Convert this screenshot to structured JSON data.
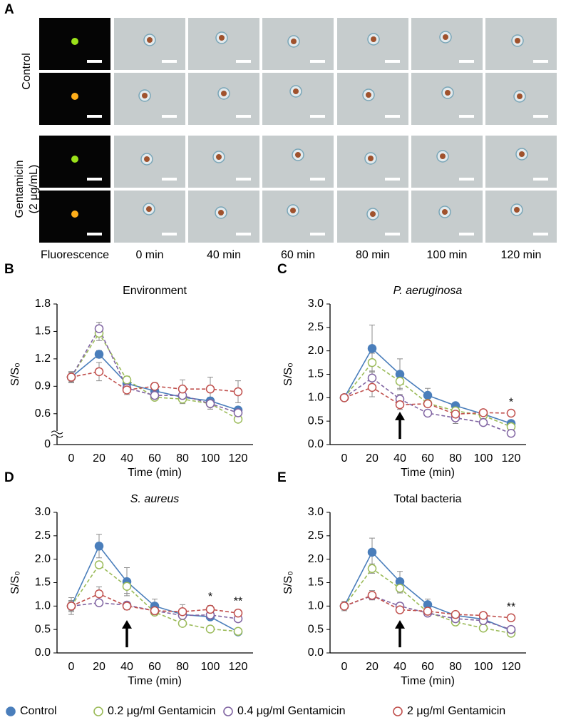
{
  "panel_a": {
    "label": "A",
    "rows": [
      {
        "label": [
          "Control"
        ]
      },
      {
        "label": [
          "Gentamicin",
          "(2 μg/mL)"
        ]
      }
    ],
    "columns": [
      "Fluorescence",
      "0 min",
      "40 min",
      "60 min",
      "80 min",
      "100 min",
      "120 min"
    ]
  },
  "legend": [
    {
      "name": "Control",
      "color": "#4a7ebb",
      "filled": true
    },
    {
      "name": "0.2 μg/ml Gentamicin",
      "color": "#9bbb59",
      "filled": false
    },
    {
      "name": "0.4 μg/ml Gentamicin",
      "color": "#8064a2",
      "filled": false
    },
    {
      "name": "2 μg/ml Gentamicin",
      "color": "#c0504d",
      "filled": false
    }
  ],
  "chart_data": [
    {
      "type": "line",
      "panel": "B",
      "title": "Environment",
      "ylabel": "S/S₀",
      "xlabel": "Time (min)",
      "categories": [
        "0",
        "20",
        "40",
        "60",
        "80",
        "100",
        "120"
      ],
      "ylim": [
        0.45,
        1.8
      ],
      "yticks": [
        0,
        0.6,
        0.9,
        1.2,
        1.5,
        1.8
      ],
      "y_break": true,
      "series": [
        {
          "color": "#4a7ebb",
          "filled": true,
          "dashed": false,
          "values": [
            1.0,
            1.25,
            0.93,
            0.85,
            0.78,
            0.74,
            0.64
          ],
          "errors": [
            0.05,
            0.04,
            0.03,
            0.04,
            0.04,
            0.04,
            0.03
          ]
        },
        {
          "color": "#9bbb59",
          "filled": false,
          "dashed": true,
          "values": [
            1.0,
            1.48,
            0.97,
            0.78,
            0.76,
            0.71,
            0.54
          ],
          "errors": [
            0.06,
            0.08,
            0.04,
            0.03,
            0.05,
            0.06,
            0.03
          ]
        },
        {
          "color": "#8064a2",
          "filled": false,
          "dashed": true,
          "values": [
            1.0,
            1.53,
            0.88,
            0.8,
            0.8,
            0.71,
            0.61
          ],
          "errors": [
            0.06,
            0.07,
            0.04,
            0.04,
            0.06,
            0.06,
            0.05
          ]
        },
        {
          "color": "#c0504d",
          "filled": false,
          "dashed": true,
          "values": [
            1.0,
            1.06,
            0.86,
            0.9,
            0.87,
            0.87,
            0.84
          ],
          "errors": [
            0.06,
            0.1,
            0.05,
            0.04,
            0.1,
            0.13,
            0.12
          ]
        }
      ],
      "annotations": []
    },
    {
      "type": "line",
      "panel": "C",
      "title": "P. aeruginosa",
      "title_italic": true,
      "ylabel": "S/S₀",
      "xlabel": "Time (min)",
      "categories": [
        "0",
        "20",
        "40",
        "60",
        "80",
        "100",
        "120"
      ],
      "ylim": [
        0,
        3
      ],
      "yticks": [
        {
          "value": 0,
          "label": "0.0"
        },
        0.5,
        {
          "value": 1,
          "label": "1.0"
        },
        1.5,
        {
          "value": 2,
          "label": "2.0"
        },
        2.5,
        {
          "value": 3,
          "label": "3.0"
        }
      ],
      "series": [
        {
          "color": "#4a7ebb",
          "filled": true,
          "dashed": false,
          "values": [
            1.0,
            2.05,
            1.5,
            1.05,
            0.83,
            0.65,
            0.45
          ],
          "errors": [
            0.02,
            0.5,
            0.33,
            0.15,
            0.06,
            0.08,
            0.05
          ]
        },
        {
          "color": "#9bbb59",
          "filled": false,
          "dashed": true,
          "values": [
            1.0,
            1.75,
            1.35,
            0.88,
            0.72,
            0.62,
            0.38
          ],
          "errors": [
            0.02,
            0.2,
            0.15,
            0.06,
            0.05,
            0.05,
            0.04
          ]
        },
        {
          "color": "#8064a2",
          "filled": false,
          "dashed": true,
          "values": [
            1.0,
            1.42,
            0.97,
            0.67,
            0.57,
            0.47,
            0.24
          ],
          "errors": [
            0.02,
            0.15,
            0.1,
            0.05,
            0.12,
            0.05,
            0.03
          ]
        },
        {
          "color": "#c0504d",
          "filled": false,
          "dashed": true,
          "values": [
            1.0,
            1.22,
            0.85,
            0.87,
            0.65,
            0.68,
            0.67
          ],
          "errors": [
            0.02,
            0.2,
            0.1,
            0.06,
            0.08,
            0.06,
            0.04
          ]
        }
      ],
      "arrow_category": "40",
      "annotations": [
        {
          "text": "*",
          "category": "120"
        }
      ]
    },
    {
      "type": "line",
      "panel": "D",
      "title": "S. aureus",
      "title_italic": true,
      "ylabel": "S/S₀",
      "xlabel": "Time (min)",
      "categories": [
        "0",
        "20",
        "40",
        "60",
        "80",
        "100",
        "120"
      ],
      "ylim": [
        0,
        3
      ],
      "yticks": [
        {
          "value": 0,
          "label": "0.0"
        },
        0.5,
        {
          "value": 1,
          "label": "1.0"
        },
        1.5,
        {
          "value": 2,
          "label": "2.0"
        },
        2.5,
        {
          "value": 3,
          "label": "3.0"
        }
      ],
      "series": [
        {
          "color": "#4a7ebb",
          "filled": true,
          "dashed": false,
          "values": [
            1.0,
            2.28,
            1.52,
            1.0,
            0.82,
            0.77,
            0.45
          ],
          "errors": [
            0.18,
            0.25,
            0.3,
            0.15,
            0.08,
            0.06,
            0.04
          ]
        },
        {
          "color": "#9bbb59",
          "filled": false,
          "dashed": true,
          "values": [
            1.0,
            1.88,
            1.42,
            0.87,
            0.63,
            0.51,
            0.46
          ],
          "errors": [
            0.1,
            0.05,
            0.15,
            0.05,
            0.04,
            0.04,
            0.03
          ]
        },
        {
          "color": "#8064a2",
          "filled": false,
          "dashed": true,
          "values": [
            1.0,
            1.07,
            1.02,
            0.9,
            0.8,
            0.81,
            0.73
          ],
          "errors": [
            0.08,
            0.06,
            0.05,
            0.05,
            0.05,
            0.05,
            0.05
          ]
        },
        {
          "color": "#c0504d",
          "filled": false,
          "dashed": true,
          "values": [
            1.0,
            1.26,
            1.0,
            0.9,
            0.88,
            0.93,
            0.85
          ],
          "errors": [
            0.12,
            0.15,
            0.08,
            0.08,
            0.15,
            0.08,
            0.06
          ]
        }
      ],
      "arrow_category": "40",
      "annotations": [
        {
          "text": "*",
          "category": "100"
        },
        {
          "text": "**",
          "category": "120"
        }
      ]
    },
    {
      "type": "line",
      "panel": "E",
      "title": "Total bacteria",
      "ylabel": "S/S₀",
      "xlabel": "Time (min)",
      "categories": [
        "0",
        "20",
        "40",
        "60",
        "80",
        "100",
        "120"
      ],
      "ylim": [
        0,
        3
      ],
      "yticks": [
        {
          "value": 0,
          "label": "0.0"
        },
        0.5,
        {
          "value": 1,
          "label": "1.0"
        },
        1.5,
        {
          "value": 2,
          "label": "2.0"
        },
        2.5,
        {
          "value": 3,
          "label": "3.0"
        }
      ],
      "series": [
        {
          "color": "#4a7ebb",
          "filled": true,
          "dashed": false,
          "values": [
            1.0,
            2.15,
            1.52,
            1.03,
            0.8,
            0.72,
            0.48
          ],
          "errors": [
            0.1,
            0.3,
            0.22,
            0.12,
            0.06,
            0.06,
            0.05
          ]
        },
        {
          "color": "#9bbb59",
          "filled": false,
          "dashed": true,
          "values": [
            1.0,
            1.8,
            1.38,
            0.87,
            0.66,
            0.53,
            0.42
          ],
          "errors": [
            0.05,
            0.1,
            0.1,
            0.05,
            0.04,
            0.04,
            0.03
          ]
        },
        {
          "color": "#8064a2",
          "filled": false,
          "dashed": true,
          "values": [
            1.0,
            1.22,
            1.0,
            0.85,
            0.73,
            0.69,
            0.5
          ],
          "errors": [
            0.05,
            0.08,
            0.05,
            0.05,
            0.05,
            0.05,
            0.05
          ]
        },
        {
          "color": "#c0504d",
          "filled": false,
          "dashed": true,
          "values": [
            1.0,
            1.23,
            0.92,
            0.89,
            0.82,
            0.8,
            0.75
          ],
          "errors": [
            0.05,
            0.1,
            0.06,
            0.06,
            0.06,
            0.05,
            0.04
          ]
        }
      ],
      "arrow_category": "40",
      "annotations": [
        {
          "text": "**",
          "category": "120"
        }
      ]
    }
  ]
}
